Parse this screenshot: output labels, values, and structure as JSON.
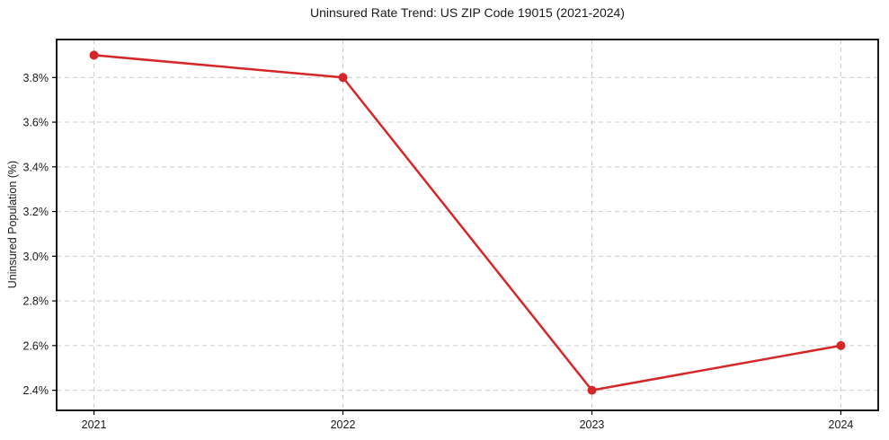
{
  "figure": {
    "background": "#ffffff"
  },
  "chart_data": {
    "type": "line",
    "title": "Uninsured Rate Trend: US ZIP Code 19015 (2021-2024)",
    "xlabel": "",
    "ylabel": "Uninsured Population (%)",
    "x": [
      2021,
      2022,
      2023,
      2024
    ],
    "x_tick_labels": [
      "2021",
      "2022",
      "2023",
      "2024"
    ],
    "series": [
      {
        "name": "uninsured-rate",
        "values": [
          3.9,
          3.8,
          2.4,
          2.6
        ],
        "color": "#d62728",
        "marker": "circle",
        "line_width": 2.5,
        "marker_radius": 5
      }
    ],
    "y_ticks": [
      2.4,
      2.6,
      2.8,
      3.0,
      3.2,
      3.4,
      3.6,
      3.8
    ],
    "y_tick_labels": [
      "2.4%",
      "2.6%",
      "2.8%",
      "3.0%",
      "3.2%",
      "3.4%",
      "3.6%",
      "3.8%"
    ],
    "xlim": [
      2020.85,
      2024.15
    ],
    "ylim": [
      2.31,
      3.97
    ],
    "grid": true,
    "grid_color": "#cccccc",
    "grid_style": "dashed",
    "spine_color": "#000000",
    "tick_color": "#000000",
    "legend_position": "none"
  }
}
